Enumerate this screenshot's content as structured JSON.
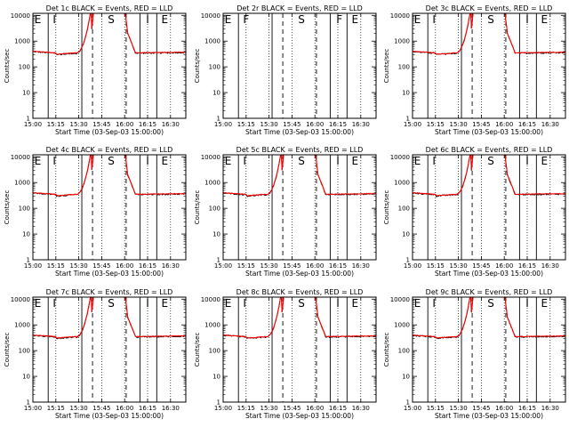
{
  "chart_data": {
    "type": "line",
    "panels": [
      {
        "title": "Det 1c BLACK = Events, RED = LLD",
        "markers": [
          "E",
          "I",
          "S",
          "I",
          "E"
        ],
        "has_data": true
      },
      {
        "title": "Det 2r BLACK = Events, RED = LLD",
        "markers": [
          "E",
          "F",
          "S",
          "F",
          "E"
        ],
        "has_data": false
      },
      {
        "title": "Det 3c BLACK = Events, RED = LLD",
        "markers": [
          "E",
          "I",
          "S",
          "I",
          "E"
        ],
        "has_data": true
      },
      {
        "title": "Det 4c BLACK = Events, RED = LLD",
        "markers": [
          "E",
          "I",
          "S",
          "I",
          "E"
        ],
        "has_data": true
      },
      {
        "title": "Det 5c BLACK = Events, RED = LLD",
        "markers": [
          "E",
          "I",
          "S",
          "I",
          "E"
        ],
        "has_data": true
      },
      {
        "title": "Det 6c BLACK = Events, RED = LLD",
        "markers": [
          "E",
          "I",
          "S",
          "I",
          "E"
        ],
        "has_data": true
      },
      {
        "title": "Det 7c BLACK = Events, RED = LLD",
        "markers": [
          "E",
          "I",
          "S",
          "I",
          "E"
        ],
        "has_data": true
      },
      {
        "title": "Det 8c BLACK = Events, RED = LLD",
        "markers": [
          "E",
          "I",
          "S",
          "I",
          "E"
        ],
        "has_data": true
      },
      {
        "title": "Det 9c BLACK = Events, RED = LLD",
        "markers": [
          "E",
          "I",
          "S",
          "I",
          "E"
        ],
        "has_data": true
      }
    ],
    "xlabel": "Start Time (03-Sep-03 15:00:00)",
    "ylabel": "Counts/sec",
    "x_ticks": [
      "15:00",
      "15:15",
      "15:30",
      "15:45",
      "16:00",
      "16:15",
      "16:30"
    ],
    "y_ticks": [
      "1",
      "10",
      "100",
      "1000",
      "10000"
    ],
    "y_scale": "log",
    "ylim": [
      1,
      12000
    ],
    "xlim_minutes_after_15": [
      0,
      100
    ],
    "solid_vlines_minutes": [
      10,
      32,
      70,
      81
    ],
    "dashed_vlines_minutes": [
      39,
      61
    ],
    "series": [
      {
        "name": "BLACK = Events",
        "color": "#000000"
      },
      {
        "name": "RED = LLD",
        "color": "#ff0000"
      }
    ]
  }
}
